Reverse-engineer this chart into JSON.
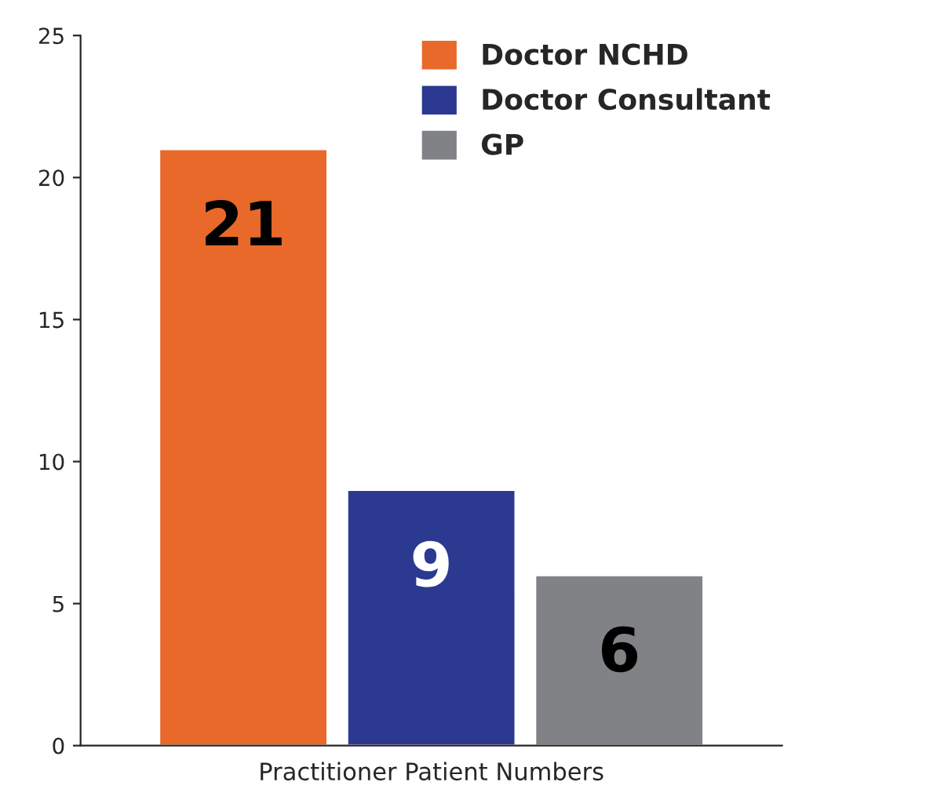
{
  "chart_data": {
    "type": "bar",
    "xlabel": "Practitioner Patient Numbers",
    "categories": [
      null
    ],
    "series": [
      {
        "name": "Doctor NCHD",
        "color": "#e8692a",
        "values": [
          21
        ]
      },
      {
        "name": "Doctor Consultant",
        "color": "#2b3990",
        "values": [
          9
        ]
      },
      {
        "name": "GP",
        "color": "#808285",
        "values": [
          6
        ]
      }
    ],
    "ylim": [
      0,
      25
    ],
    "yticks": [
      0,
      5,
      10,
      15,
      20,
      25
    ],
    "grid": false,
    "legend": "top right",
    "data_labels": true
  }
}
